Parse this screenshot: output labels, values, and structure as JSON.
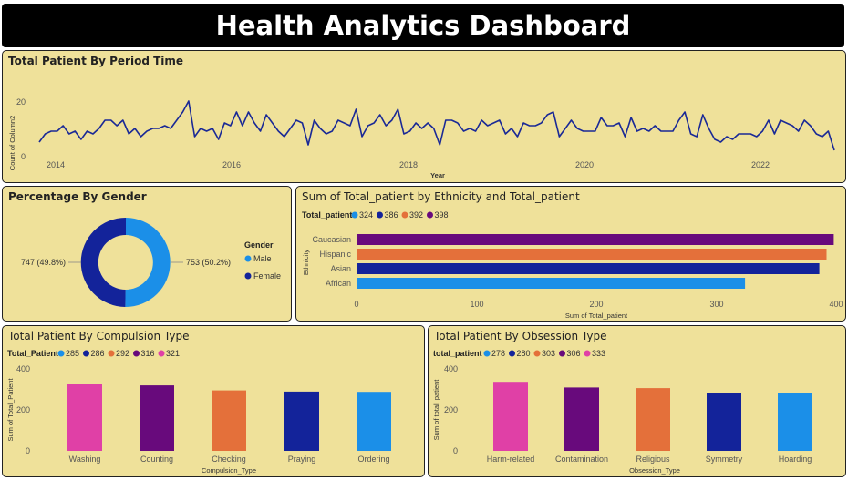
{
  "header": {
    "title": "Health Analytics Dashboard"
  },
  "colors": {
    "panel_bg": "#efe19a",
    "line": "#1a2996",
    "cyan": "#1b8fe8",
    "navy": "#13239a",
    "orange": "#e4703a",
    "purple": "#680a7c",
    "pink": "#e040a6"
  },
  "timeline": {
    "title": "Total Patient By Period Time",
    "chart_data": {
      "type": "line",
      "xlabel": "Year",
      "ylabel": "Count of Column2",
      "x_ticks": [
        "2014",
        "2016",
        "2018",
        "2020",
        "2022"
      ],
      "y_ticks": [
        "0",
        "20"
      ],
      "ylim": [
        0,
        20
      ],
      "series": [
        {
          "values": [
            5,
            8,
            9,
            9,
            11,
            8,
            9,
            6,
            9,
            8,
            10,
            13,
            13,
            11,
            13,
            8,
            10,
            7,
            9,
            10,
            10,
            11,
            10,
            13,
            16,
            20,
            7,
            10,
            9,
            10,
            6,
            12,
            11,
            16,
            11,
            16,
            12,
            9,
            15,
            12,
            9,
            7,
            10,
            13,
            12,
            4,
            13,
            10,
            8,
            9,
            13,
            12,
            11,
            17,
            7,
            11,
            12,
            15,
            11,
            13,
            17,
            8,
            9,
            12,
            10,
            12,
            10,
            4,
            13,
            13,
            12,
            9,
            10,
            9,
            13,
            11,
            12,
            13,
            8,
            10,
            7,
            12,
            11,
            11,
            12,
            15,
            16,
            7,
            10,
            13,
            10,
            9,
            9,
            9,
            14,
            11,
            11,
            12,
            7,
            14,
            9,
            10,
            9,
            11,
            9,
            9,
            9,
            13,
            16,
            8,
            7,
            15,
            10,
            6,
            5,
            7,
            6,
            8,
            8,
            8,
            7,
            9,
            13,
            8,
            13,
            12,
            11,
            9,
            13,
            11,
            8,
            7,
            9,
            2
          ]
        }
      ]
    }
  },
  "gender": {
    "title": "Percentage By Gender",
    "legend_title": "Gender",
    "chart_data": {
      "type": "pie",
      "categories": [
        "Male",
        "Female"
      ],
      "values": [
        753,
        747
      ],
      "data_labels": [
        "753 (50.2%)",
        "747 (49.8%)"
      ]
    }
  },
  "ethnicity": {
    "title": "Sum of Total_patient by Ethnicity and Total_patient",
    "legend_title": "Total_patient",
    "chart_data": {
      "type": "bar",
      "orientation": "horizontal",
      "categories": [
        "Caucasian",
        "Hispanic",
        "Asian",
        "African"
      ],
      "values": [
        398,
        392,
        386,
        324
      ],
      "legend": [
        "324",
        "386",
        "392",
        "398"
      ],
      "xlabel": "Sum of Total_patient",
      "ylabel": "Ethnicity",
      "x_ticks": [
        "0",
        "100",
        "200",
        "300",
        "400"
      ],
      "xlim": [
        0,
        400
      ]
    }
  },
  "compulsion": {
    "title": "Total Patient By Compulsion Type",
    "legend_title": "Total_Patient",
    "chart_data": {
      "type": "bar",
      "categories": [
        "Washing",
        "Counting",
        "Checking",
        "Praying",
        "Ordering"
      ],
      "values": [
        321,
        316,
        292,
        286,
        285
      ],
      "legend": [
        "285",
        "286",
        "292",
        "316",
        "321"
      ],
      "xlabel": "Compulsion_Type",
      "ylabel": "Sum of Total_Patient",
      "y_ticks": [
        "0",
        "200",
        "400"
      ],
      "ylim": [
        0,
        400
      ]
    }
  },
  "obsession": {
    "title": "Total Patient By Obsession Type",
    "legend_title": "total_patient",
    "chart_data": {
      "type": "bar",
      "categories": [
        "Harm-related",
        "Contamination",
        "Religious",
        "Symmetry",
        "Hoarding"
      ],
      "values": [
        333,
        306,
        303,
        280,
        278
      ],
      "legend": [
        "278",
        "280",
        "303",
        "306",
        "333"
      ],
      "xlabel": "Obsession_Type",
      "ylabel": "Sum of total_patient",
      "y_ticks": [
        "0",
        "200",
        "400"
      ],
      "ylim": [
        0,
        400
      ]
    }
  }
}
